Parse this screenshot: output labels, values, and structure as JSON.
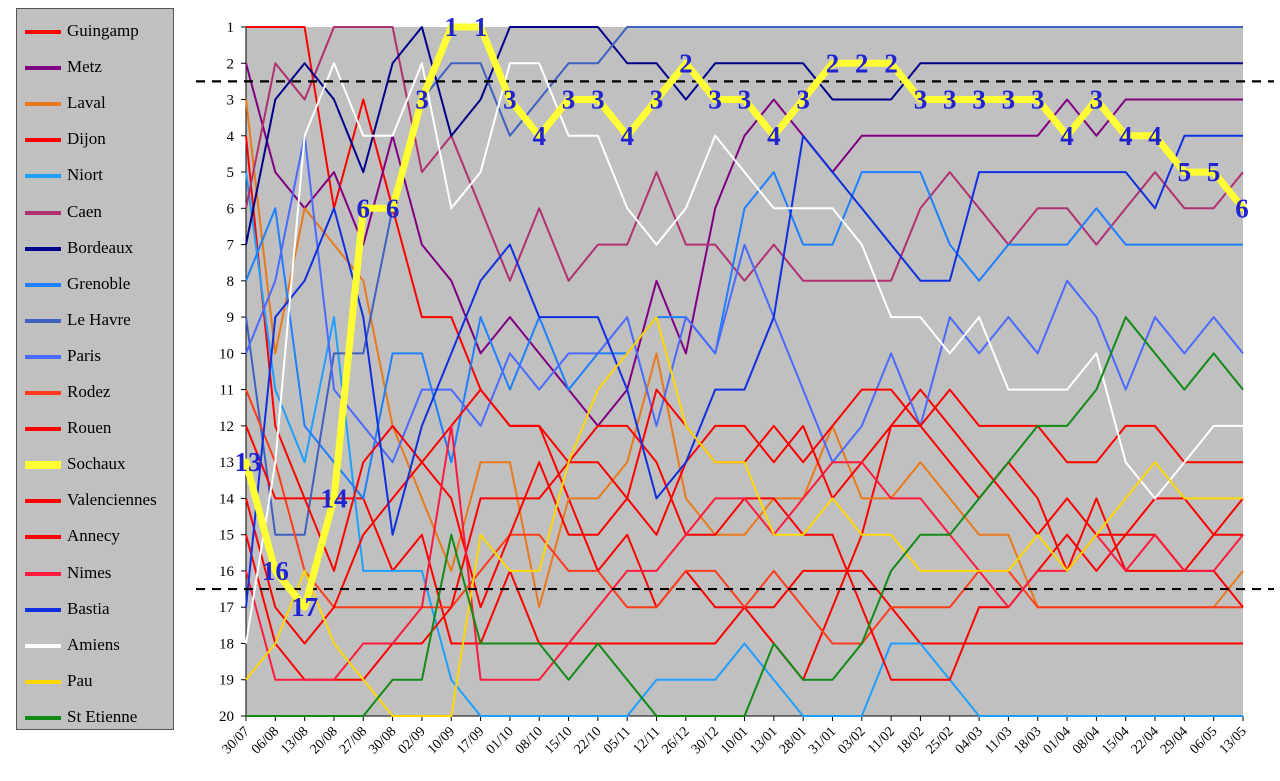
{
  "chart_data": {
    "type": "line",
    "title": "",
    "xlabel": "",
    "ylabel": "",
    "x": [
      "30/07",
      "06/08",
      "13/08",
      "20/08",
      "27/08",
      "30/08",
      "02/09",
      "10/09",
      "17/09",
      "01/10",
      "08/10",
      "15/10",
      "22/10",
      "05/11",
      "12/11",
      "26/12",
      "30/12",
      "10/01",
      "13/01",
      "28/01",
      "31/01",
      "03/02",
      "11/02",
      "18/02",
      "25/02",
      "04/03",
      "11/03",
      "18/03",
      "01/04",
      "08/04",
      "15/04",
      "22/04",
      "29/04",
      "06/05",
      "13/05"
    ],
    "ylim": [
      20,
      1
    ],
    "yticks": [
      1,
      2,
      3,
      4,
      5,
      6,
      7,
      8,
      9,
      10,
      11,
      12,
      13,
      14,
      15,
      16,
      17,
      18,
      19,
      20
    ],
    "grid": false,
    "legend_position": "left",
    "reference_lines": [
      2.5,
      16.5
    ],
    "series": [
      {
        "name": "Guingamp",
        "color": "#ff0000",
        "width": 2,
        "values": [
          1,
          1,
          1,
          6,
          3,
          6,
          9,
          9,
          11,
          12,
          12,
          14,
          16,
          15,
          17,
          16,
          17,
          17,
          18,
          19,
          17,
          15,
          12,
          11,
          12,
          13,
          14,
          15,
          14,
          15,
          15,
          15,
          16,
          15,
          15
        ]
      },
      {
        "name": "Metz",
        "color": "#800080",
        "width": 2,
        "values": [
          2,
          5,
          6,
          5,
          7,
          4,
          7,
          8,
          10,
          9,
          10,
          11,
          12,
          11,
          8,
          10,
          6,
          4,
          3,
          4,
          5,
          4,
          4,
          4,
          4,
          4,
          4,
          4,
          3,
          4,
          3,
          3,
          3,
          3,
          3
        ]
      },
      {
        "name": "Laval",
        "color": "#e87a1c",
        "width": 2,
        "values": [
          3,
          10,
          6,
          7,
          8,
          12,
          14,
          16,
          13,
          13,
          17,
          14,
          14,
          13,
          10,
          14,
          15,
          15,
          14,
          14,
          12,
          14,
          14,
          13,
          14,
          15,
          15,
          17,
          17,
          17,
          17,
          17,
          17,
          17,
          16
        ]
      },
      {
        "name": "Dijon",
        "color": "#ff0000",
        "width": 2,
        "values": [
          4,
          12,
          14,
          14,
          14,
          16,
          15,
          18,
          18,
          16,
          18,
          18,
          18,
          18,
          18,
          18,
          18,
          17,
          17,
          16,
          16,
          16,
          17,
          18,
          18,
          18,
          18,
          18,
          18,
          18,
          18,
          18,
          18,
          18,
          18
        ]
      },
      {
        "name": "Niort",
        "color": "#1e9fff",
        "width": 2,
        "values": [
          5,
          11,
          13,
          9,
          16,
          16,
          16,
          19,
          20,
          20,
          20,
          20,
          20,
          20,
          19,
          19,
          19,
          18,
          19,
          20,
          20,
          20,
          18,
          18,
          19,
          20,
          20,
          20,
          20,
          20,
          20,
          20,
          20,
          20,
          20
        ]
      },
      {
        "name": "Caen",
        "color": "#b03070",
        "width": 2,
        "values": [
          6,
          2,
          3,
          1,
          1,
          1,
          5,
          4,
          6,
          8,
          6,
          8,
          7,
          7,
          5,
          7,
          7,
          8,
          7,
          8,
          8,
          8,
          8,
          6,
          5,
          6,
          7,
          6,
          6,
          7,
          6,
          5,
          6,
          6,
          5
        ]
      },
      {
        "name": "Bordeaux",
        "color": "#00008b",
        "width": 2,
        "values": [
          7,
          3,
          2,
          3,
          5,
          2,
          1,
          4,
          3,
          1,
          1,
          1,
          1,
          2,
          2,
          3,
          2,
          2,
          2,
          2,
          3,
          3,
          3,
          2,
          2,
          2,
          2,
          2,
          2,
          2,
          2,
          2,
          2,
          2,
          2
        ]
      },
      {
        "name": "Grenoble",
        "color": "#1e7fff",
        "width": 2,
        "values": [
          8,
          6,
          12,
          13,
          14,
          10,
          10,
          13,
          9,
          11,
          9,
          11,
          10,
          10,
          9,
          9,
          10,
          6,
          5,
          7,
          7,
          5,
          5,
          5,
          7,
          8,
          7,
          7,
          7,
          6,
          7,
          7,
          7,
          7,
          7
        ]
      },
      {
        "name": "Le Havre",
        "color": "#4060c0",
        "width": 2,
        "values": [
          9,
          15,
          15,
          10,
          10,
          6,
          3,
          2,
          2,
          4,
          3,
          2,
          2,
          1,
          1,
          1,
          1,
          1,
          1,
          1,
          1,
          1,
          1,
          1,
          1,
          1,
          1,
          1,
          1,
          1,
          1,
          1,
          1,
          1,
          1
        ]
      },
      {
        "name": "Paris",
        "color": "#4a6aff",
        "width": 2,
        "values": [
          10,
          8,
          4,
          11,
          12,
          13,
          11,
          11,
          12,
          10,
          11,
          10,
          10,
          9,
          12,
          9,
          10,
          7,
          9,
          11,
          13,
          12,
          10,
          12,
          9,
          10,
          9,
          10,
          8,
          9,
          11,
          9,
          10,
          9,
          10
        ]
      },
      {
        "name": "Rodez",
        "color": "#ff3b1b",
        "width": 2,
        "values": [
          11,
          13,
          16,
          17,
          17,
          17,
          17,
          17,
          16,
          15,
          15,
          16,
          16,
          17,
          17,
          16,
          16,
          17,
          16,
          17,
          18,
          18,
          17,
          17,
          17,
          16,
          16,
          17,
          17,
          17,
          17,
          17,
          17,
          17,
          17
        ]
      },
      {
        "name": "Rouen",
        "color": "#ff0000",
        "width": 2,
        "values": [
          12,
          14,
          14,
          16,
          13,
          12,
          13,
          14,
          17,
          15,
          13,
          15,
          15,
          14,
          11,
          12,
          13,
          13,
          12,
          13,
          12,
          11,
          11,
          12,
          13,
          14,
          13,
          14,
          16,
          14,
          16,
          16,
          16,
          16,
          17
        ]
      },
      {
        "name": "Sochaux",
        "color": "#ffff33",
        "width": 7,
        "values": [
          13,
          16,
          17,
          14,
          6,
          6,
          3,
          1,
          1,
          3,
          4,
          3,
          3,
          4,
          3,
          2,
          3,
          3,
          4,
          3,
          2,
          2,
          2,
          3,
          3,
          3,
          3,
          3,
          4,
          3,
          4,
          4,
          5,
          5,
          6
        ]
      },
      {
        "name": "Valenciennes",
        "color": "#ff0000",
        "width": 2,
        "values": [
          14,
          17,
          18,
          17,
          15,
          14,
          13,
          12,
          11,
          12,
          12,
          13,
          13,
          14,
          15,
          13,
          12,
          12,
          13,
          12,
          14,
          13,
          12,
          12,
          11,
          12,
          12,
          12,
          13,
          13,
          12,
          12,
          13,
          13,
          13
        ]
      },
      {
        "name": "Annecy",
        "color": "#ff0000",
        "width": 2,
        "values": [
          15,
          18,
          19,
          19,
          19,
          18,
          18,
          17,
          14,
          14,
          14,
          13,
          12,
          12,
          13,
          15,
          15,
          14,
          14,
          15,
          15,
          17,
          19,
          19,
          19,
          17,
          17,
          16,
          15,
          16,
          15,
          14,
          14,
          15,
          14
        ]
      },
      {
        "name": "Nimes",
        "color": "#ff1a3d",
        "width": 2,
        "values": [
          16,
          19,
          19,
          19,
          18,
          18,
          17,
          12,
          19,
          19,
          19,
          18,
          17,
          16,
          16,
          15,
          14,
          14,
          15,
          14,
          13,
          13,
          14,
          14,
          15,
          16,
          17,
          16,
          16,
          15,
          16,
          15,
          16,
          16,
          15
        ]
      },
      {
        "name": "Bastia",
        "color": "#1030e0",
        "width": 2,
        "values": [
          17,
          9,
          8,
          6,
          9,
          15,
          12,
          10,
          8,
          7,
          9,
          9,
          9,
          11,
          14,
          13,
          11,
          11,
          9,
          4,
          5,
          6,
          7,
          8,
          8,
          5,
          5,
          5,
          5,
          5,
          5,
          6,
          4,
          4,
          4
        ]
      },
      {
        "name": "Amiens",
        "color": "#ffffff",
        "width": 2,
        "values": [
          18,
          13,
          4,
          2,
          4,
          4,
          2,
          6,
          5,
          2,
          2,
          4,
          4,
          6,
          7,
          6,
          4,
          5,
          6,
          6,
          6,
          7,
          9,
          9,
          10,
          9,
          11,
          11,
          11,
          10,
          13,
          14,
          13,
          12,
          12
        ]
      },
      {
        "name": "Pau",
        "color": "#ffd700",
        "width": 2,
        "values": [
          19,
          18,
          16,
          18,
          19,
          20,
          20,
          20,
          15,
          16,
          16,
          13,
          11,
          10,
          9,
          12,
          13,
          13,
          15,
          15,
          14,
          15,
          15,
          16,
          16,
          16,
          16,
          15,
          16,
          15,
          14,
          13,
          14,
          14,
          14
        ]
      },
      {
        "name": "St Etienne",
        "color": "#138a17",
        "width": 2,
        "values": [
          20,
          20,
          20,
          20,
          20,
          19,
          19,
          15,
          18,
          18,
          18,
          19,
          18,
          19,
          20,
          20,
          20,
          20,
          18,
          19,
          19,
          18,
          16,
          15,
          15,
          14,
          13,
          12,
          12,
          11,
          9,
          10,
          11,
          10,
          11
        ]
      }
    ],
    "annotations": [
      {
        "series": "Sochaux",
        "x": "30/07",
        "y": 13,
        "text": "13"
      },
      {
        "series": "Sochaux",
        "x": "06/08",
        "y": 16,
        "text": "16"
      },
      {
        "series": "Sochaux",
        "x": "13/08",
        "y": 17,
        "text": "17"
      },
      {
        "series": "Sochaux",
        "x": "20/08",
        "y": 14,
        "text": "14"
      },
      {
        "series": "Sochaux",
        "x": "27/08",
        "y": 6,
        "text": "6"
      },
      {
        "series": "Sochaux",
        "x": "30/08",
        "y": 6,
        "text": "6"
      },
      {
        "series": "Sochaux",
        "x": "02/09",
        "y": 3,
        "text": "3"
      },
      {
        "series": "Sochaux",
        "x": "10/09",
        "y": 1,
        "text": "1"
      },
      {
        "series": "Sochaux",
        "x": "17/09",
        "y": 1,
        "text": "1"
      },
      {
        "series": "Sochaux",
        "x": "01/10",
        "y": 3,
        "text": "3"
      },
      {
        "series": "Sochaux",
        "x": "08/10",
        "y": 4,
        "text": "4"
      },
      {
        "series": "Sochaux",
        "x": "15/10",
        "y": 3,
        "text": "3"
      },
      {
        "series": "Sochaux",
        "x": "22/10",
        "y": 3,
        "text": "3"
      },
      {
        "series": "Sochaux",
        "x": "05/11",
        "y": 4,
        "text": "4"
      },
      {
        "series": "Sochaux",
        "x": "12/11",
        "y": 3,
        "text": "3"
      },
      {
        "series": "Sochaux",
        "x": "26/12",
        "y": 2,
        "text": "2"
      },
      {
        "series": "Sochaux",
        "x": "30/12",
        "y": 3,
        "text": "3"
      },
      {
        "series": "Sochaux",
        "x": "10/01",
        "y": 3,
        "text": "3"
      },
      {
        "series": "Sochaux",
        "x": "13/01",
        "y": 4,
        "text": "4"
      },
      {
        "series": "Sochaux",
        "x": "28/01",
        "y": 3,
        "text": "3"
      },
      {
        "series": "Sochaux",
        "x": "31/01",
        "y": 2,
        "text": "2"
      },
      {
        "series": "Sochaux",
        "x": "03/02",
        "y": 2,
        "text": "2"
      },
      {
        "series": "Sochaux",
        "x": "11/02",
        "y": 2,
        "text": "2"
      },
      {
        "series": "Sochaux",
        "x": "18/02",
        "y": 3,
        "text": "3"
      },
      {
        "series": "Sochaux",
        "x": "25/02",
        "y": 3,
        "text": "3"
      },
      {
        "series": "Sochaux",
        "x": "04/03",
        "y": 3,
        "text": "3"
      },
      {
        "series": "Sochaux",
        "x": "11/03",
        "y": 3,
        "text": "3"
      },
      {
        "series": "Sochaux",
        "x": "18/03",
        "y": 3,
        "text": "3"
      },
      {
        "series": "Sochaux",
        "x": "01/04",
        "y": 4,
        "text": "4"
      },
      {
        "series": "Sochaux",
        "x": "08/04",
        "y": 3,
        "text": "3"
      },
      {
        "series": "Sochaux",
        "x": "15/04",
        "y": 4,
        "text": "4"
      },
      {
        "series": "Sochaux",
        "x": "22/04",
        "y": 4,
        "text": "4"
      },
      {
        "series": "Sochaux",
        "x": "29/04",
        "y": 5,
        "text": "5"
      },
      {
        "series": "Sochaux",
        "x": "06/05",
        "y": 5,
        "text": "5"
      },
      {
        "series": "Sochaux",
        "x": "13/05",
        "y": 6,
        "text": "6"
      }
    ]
  }
}
